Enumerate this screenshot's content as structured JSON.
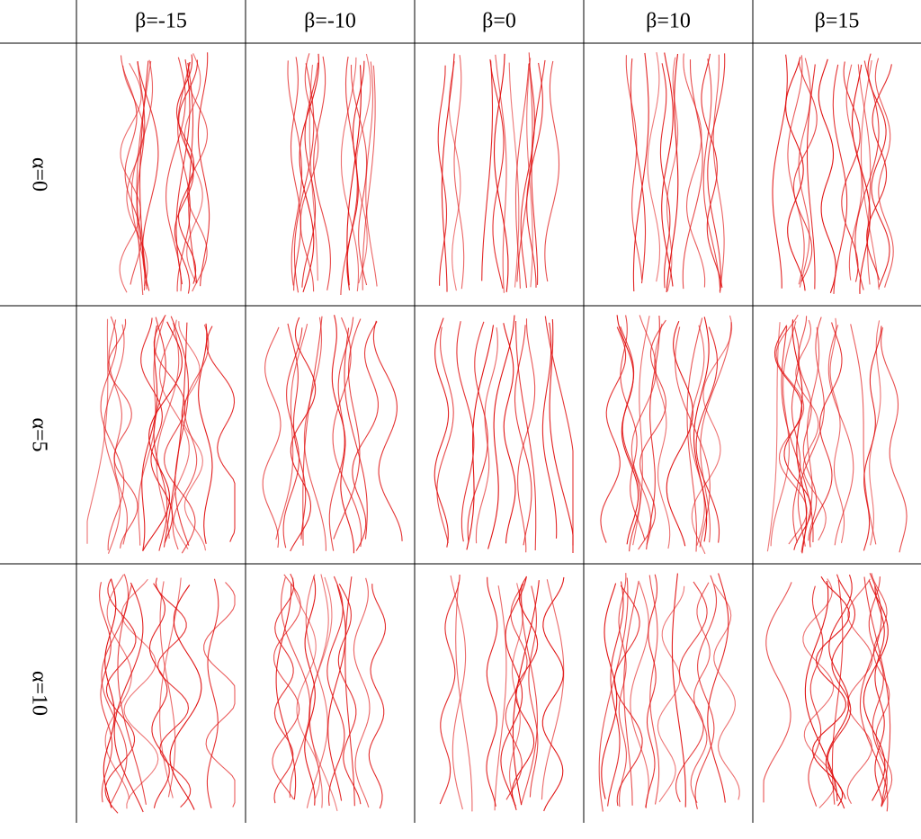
{
  "table": {
    "column_headers": [
      "β=-15",
      "β=-10",
      "β=0",
      "β=10",
      "β=15"
    ],
    "rows": [
      {
        "label": "α=0"
      },
      {
        "label": "α=5"
      },
      {
        "label": "α=10"
      }
    ]
  }
}
